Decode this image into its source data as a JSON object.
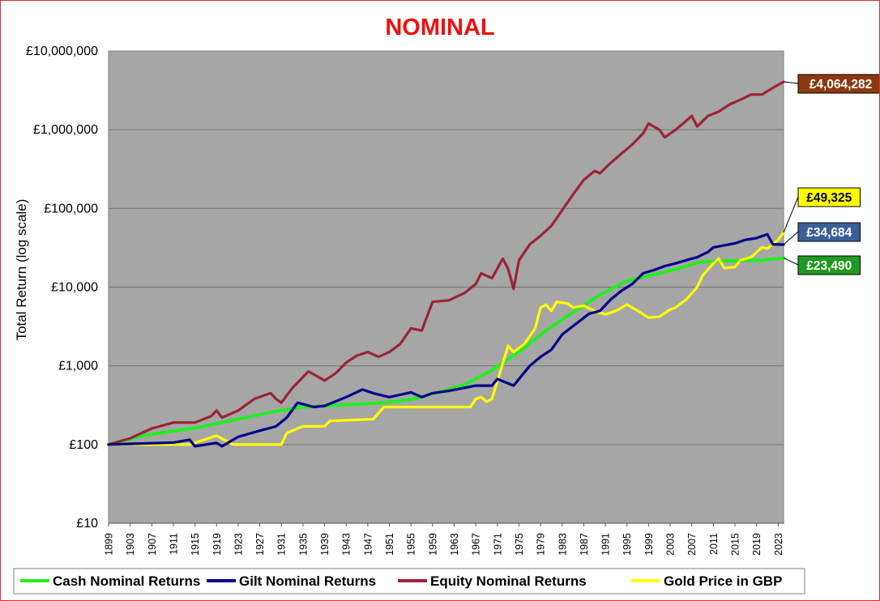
{
  "chart_data": {
    "type": "line",
    "title": "NOMINAL",
    "ylabel": "Total Return (log scale)",
    "xlabel": "",
    "yscale": "log",
    "ylim": [
      10,
      10000000
    ],
    "xlim": [
      1899,
      2024
    ],
    "y_ticks": [
      {
        "value": 10,
        "label": "£10"
      },
      {
        "value": 100,
        "label": "£100"
      },
      {
        "value": 1000,
        "label": "£1,000"
      },
      {
        "value": 10000,
        "label": "£10,000"
      },
      {
        "value": 100000,
        "label": "£100,000"
      },
      {
        "value": 1000000,
        "label": "£1,000,000"
      },
      {
        "value": 10000000,
        "label": "£10,000,000"
      }
    ],
    "x_ticks": [
      1899,
      1903,
      1907,
      1911,
      1915,
      1919,
      1923,
      1927,
      1931,
      1935,
      1939,
      1943,
      1947,
      1951,
      1955,
      1959,
      1963,
      1967,
      1971,
      1975,
      1979,
      1983,
      1987,
      1991,
      1995,
      1999,
      2003,
      2007,
      2011,
      2015,
      2019,
      2023
    ],
    "grid": "horizontal",
    "plot_background": "#a6a6a6",
    "legend_position": "bottom",
    "series": [
      {
        "name": "Cash Nominal Returns",
        "color": "#22ee22",
        "end_label": "£23,490",
        "label_bg": "#1f9a1f",
        "label_fg": "#ffffff",
        "points": [
          [
            1899,
            100
          ],
          [
            1905,
            128
          ],
          [
            1910,
            145
          ],
          [
            1915,
            162
          ],
          [
            1920,
            190
          ],
          [
            1925,
            225
          ],
          [
            1930,
            265
          ],
          [
            1935,
            300
          ],
          [
            1940,
            312
          ],
          [
            1945,
            325
          ],
          [
            1950,
            340
          ],
          [
            1955,
            375
          ],
          [
            1960,
            460
          ],
          [
            1965,
            580
          ],
          [
            1970,
            880
          ],
          [
            1975,
            1500
          ],
          [
            1980,
            2800
          ],
          [
            1985,
            4800
          ],
          [
            1990,
            8000
          ],
          [
            1995,
            12000
          ],
          [
            2000,
            14500
          ],
          [
            2005,
            17500
          ],
          [
            2008,
            20500
          ],
          [
            2010,
            21200
          ],
          [
            2015,
            21600
          ],
          [
            2020,
            22000
          ],
          [
            2024,
            23490
          ]
        ]
      },
      {
        "name": "Gilt Nominal Returns",
        "color": "#00008b",
        "end_label": "£34,684",
        "label_bg": "#3a5f99",
        "label_fg": "#ffffff",
        "points": [
          [
            1899,
            100
          ],
          [
            1903,
            102
          ],
          [
            1907,
            104
          ],
          [
            1911,
            106
          ],
          [
            1914,
            115
          ],
          [
            1915,
            95
          ],
          [
            1919,
            105
          ],
          [
            1920,
            95
          ],
          [
            1923,
            125
          ],
          [
            1927,
            150
          ],
          [
            1930,
            170
          ],
          [
            1932,
            220
          ],
          [
            1934,
            340
          ],
          [
            1937,
            300
          ],
          [
            1939,
            310
          ],
          [
            1943,
            400
          ],
          [
            1946,
            500
          ],
          [
            1948,
            450
          ],
          [
            1951,
            400
          ],
          [
            1955,
            460
          ],
          [
            1957,
            400
          ],
          [
            1959,
            450
          ],
          [
            1962,
            480
          ],
          [
            1967,
            560
          ],
          [
            1970,
            560
          ],
          [
            1971,
            680
          ],
          [
            1974,
            560
          ],
          [
            1977,
            1000
          ],
          [
            1979,
            1300
          ],
          [
            1981,
            1600
          ],
          [
            1983,
            2500
          ],
          [
            1985,
            3200
          ],
          [
            1988,
            4600
          ],
          [
            1990,
            5000
          ],
          [
            1992,
            7000
          ],
          [
            1994,
            9000
          ],
          [
            1996,
            11000
          ],
          [
            1998,
            15000
          ],
          [
            2000,
            16500
          ],
          [
            2002,
            18500
          ],
          [
            2004,
            20000
          ],
          [
            2006,
            22000
          ],
          [
            2008,
            24000
          ],
          [
            2010,
            28000
          ],
          [
            2011,
            32000
          ],
          [
            2013,
            34000
          ],
          [
            2015,
            36000
          ],
          [
            2017,
            40000
          ],
          [
            2019,
            42000
          ],
          [
            2021,
            47000
          ],
          [
            2022,
            35000
          ],
          [
            2024,
            34684
          ]
        ]
      },
      {
        "name": "Equity Nominal Returns",
        "color": "#9b2335",
        "end_label": "£4,064,282",
        "label_bg": "#8b3a0f",
        "label_fg": "#ffffff",
        "points": [
          [
            1899,
            100
          ],
          [
            1903,
            120
          ],
          [
            1907,
            160
          ],
          [
            1911,
            190
          ],
          [
            1915,
            190
          ],
          [
            1918,
            230
          ],
          [
            1919,
            270
          ],
          [
            1920,
            220
          ],
          [
            1923,
            270
          ],
          [
            1926,
            380
          ],
          [
            1929,
            450
          ],
          [
            1930,
            380
          ],
          [
            1931,
            340
          ],
          [
            1933,
            520
          ],
          [
            1936,
            850
          ],
          [
            1939,
            650
          ],
          [
            1941,
            800
          ],
          [
            1943,
            1100
          ],
          [
            1945,
            1350
          ],
          [
            1947,
            1500
          ],
          [
            1949,
            1300
          ],
          [
            1951,
            1500
          ],
          [
            1953,
            1900
          ],
          [
            1955,
            3000
          ],
          [
            1957,
            2800
          ],
          [
            1959,
            6500
          ],
          [
            1962,
            6800
          ],
          [
            1965,
            8500
          ],
          [
            1967,
            11000
          ],
          [
            1968,
            15000
          ],
          [
            1970,
            13000
          ],
          [
            1972,
            23000
          ],
          [
            1973,
            17000
          ],
          [
            1974,
            9500
          ],
          [
            1975,
            22000
          ],
          [
            1977,
            35000
          ],
          [
            1979,
            45000
          ],
          [
            1981,
            60000
          ],
          [
            1983,
            95000
          ],
          [
            1985,
            150000
          ],
          [
            1987,
            230000
          ],
          [
            1989,
            300000
          ],
          [
            1990,
            280000
          ],
          [
            1992,
            380000
          ],
          [
            1994,
            500000
          ],
          [
            1996,
            650000
          ],
          [
            1998,
            900000
          ],
          [
            1999,
            1200000
          ],
          [
            2001,
            1000000
          ],
          [
            2002,
            800000
          ],
          [
            2004,
            1000000
          ],
          [
            2006,
            1300000
          ],
          [
            2007,
            1500000
          ],
          [
            2008,
            1100000
          ],
          [
            2010,
            1500000
          ],
          [
            2012,
            1700000
          ],
          [
            2014,
            2100000
          ],
          [
            2016,
            2400000
          ],
          [
            2018,
            2800000
          ],
          [
            2020,
            2800000
          ],
          [
            2022,
            3400000
          ],
          [
            2024,
            4064282
          ]
        ]
      },
      {
        "name": "Gold Price in GBP",
        "color": "#ffff00",
        "end_label": "£49,325",
        "label_bg": "#ffff00",
        "label_fg": "#000000",
        "points": [
          [
            1899,
            100
          ],
          [
            1914,
            100
          ],
          [
            1919,
            130
          ],
          [
            1922,
            100
          ],
          [
            1931,
            100
          ],
          [
            1932,
            140
          ],
          [
            1935,
            170
          ],
          [
            1939,
            170
          ],
          [
            1940,
            200
          ],
          [
            1948,
            210
          ],
          [
            1950,
            300
          ],
          [
            1966,
            300
          ],
          [
            1967,
            380
          ],
          [
            1968,
            400
          ],
          [
            1969,
            350
          ],
          [
            1970,
            380
          ],
          [
            1973,
            1800
          ],
          [
            1974,
            1500
          ],
          [
            1976,
            1900
          ],
          [
            1978,
            3000
          ],
          [
            1979,
            5500
          ],
          [
            1980,
            6000
          ],
          [
            1981,
            5000
          ],
          [
            1982,
            6500
          ],
          [
            1984,
            6200
          ],
          [
            1985,
            5500
          ],
          [
            1987,
            5800
          ],
          [
            1989,
            5000
          ],
          [
            1991,
            4500
          ],
          [
            1993,
            5000
          ],
          [
            1995,
            6000
          ],
          [
            1997,
            5000
          ],
          [
            1999,
            4100
          ],
          [
            2001,
            4200
          ],
          [
            2003,
            5200
          ],
          [
            2004,
            5500
          ],
          [
            2006,
            7000
          ],
          [
            2008,
            10000
          ],
          [
            2009,
            14000
          ],
          [
            2011,
            20000
          ],
          [
            2012,
            23000
          ],
          [
            2013,
            17500
          ],
          [
            2015,
            18000
          ],
          [
            2016,
            22000
          ],
          [
            2018,
            24000
          ],
          [
            2020,
            32000
          ],
          [
            2021,
            31000
          ],
          [
            2022,
            35000
          ],
          [
            2023,
            40000
          ],
          [
            2024,
            49325
          ]
        ]
      }
    ]
  }
}
